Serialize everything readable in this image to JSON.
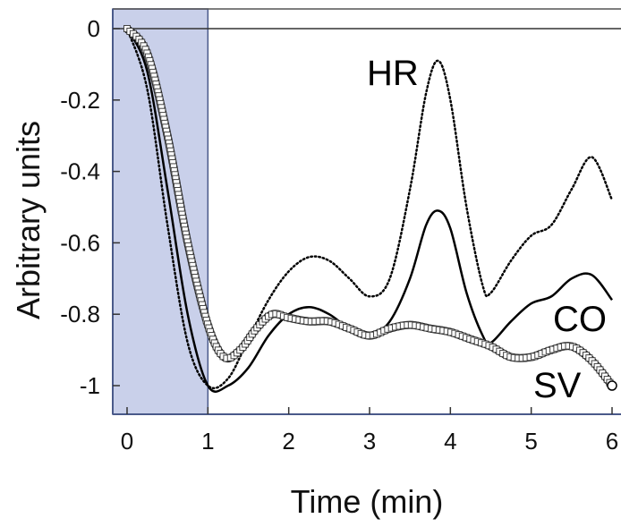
{
  "chart_data": {
    "type": "line",
    "title": "",
    "xlabel": "Time (min)",
    "ylabel": "Arbitrary units",
    "xlim": [
      0,
      6
    ],
    "ylim": [
      -1.05,
      0
    ],
    "xticks": [
      "0",
      "1",
      "2",
      "3",
      "4",
      "5",
      "6"
    ],
    "yticks": [
      "0",
      "-0.2",
      "-0.4",
      "-0.6",
      "-0.8",
      "-1"
    ],
    "reference_line_y": 0,
    "shaded_interval_x": [
      0,
      1
    ],
    "grid": false,
    "legend": "none",
    "colors": {
      "line": "#000000",
      "shade": "#c9d0ea",
      "frame": "#4a5a8a",
      "marker_stroke": "#444444"
    },
    "series": [
      {
        "name": "HR",
        "style": "dotted",
        "x": [
          0,
          0.25,
          0.5,
          0.75,
          1.0,
          1.25,
          1.5,
          1.75,
          2.0,
          2.25,
          2.5,
          2.75,
          3.0,
          3.25,
          3.5,
          3.7,
          3.85,
          4.0,
          4.2,
          4.4,
          4.5,
          4.75,
          5.0,
          5.25,
          5.5,
          5.75,
          6.0
        ],
        "y": [
          0,
          -0.17,
          -0.55,
          -0.88,
          -1.0,
          -0.98,
          -0.87,
          -0.76,
          -0.68,
          -0.64,
          -0.65,
          -0.7,
          -0.75,
          -0.7,
          -0.45,
          -0.18,
          -0.09,
          -0.2,
          -0.5,
          -0.72,
          -0.74,
          -0.65,
          -0.58,
          -0.55,
          -0.45,
          -0.36,
          -0.48
        ]
      },
      {
        "name": "CO",
        "style": "solid",
        "x": [
          0,
          0.25,
          0.5,
          0.75,
          1.0,
          1.25,
          1.5,
          1.75,
          2.0,
          2.25,
          2.5,
          2.75,
          3.0,
          3.25,
          3.5,
          3.7,
          3.85,
          4.0,
          4.2,
          4.4,
          4.5,
          4.75,
          5.0,
          5.25,
          5.5,
          5.75,
          6.0
        ],
        "y": [
          0,
          -0.12,
          -0.45,
          -0.8,
          -1.0,
          -1.0,
          -0.95,
          -0.86,
          -0.8,
          -0.78,
          -0.8,
          -0.84,
          -0.86,
          -0.82,
          -0.7,
          -0.55,
          -0.51,
          -0.56,
          -0.74,
          -0.86,
          -0.88,
          -0.82,
          -0.77,
          -0.75,
          -0.7,
          -0.69,
          -0.76
        ]
      },
      {
        "name": "SV",
        "style": "thick-markers",
        "x": [
          0,
          0.25,
          0.5,
          0.75,
          1.0,
          1.2,
          1.4,
          1.6,
          1.8,
          2.0,
          2.25,
          2.5,
          2.75,
          3.0,
          3.25,
          3.5,
          3.75,
          4.0,
          4.25,
          4.5,
          4.75,
          5.0,
          5.25,
          5.5,
          5.75,
          6.0
        ],
        "y": [
          0,
          -0.07,
          -0.3,
          -0.6,
          -0.83,
          -0.92,
          -0.9,
          -0.84,
          -0.8,
          -0.81,
          -0.82,
          -0.82,
          -0.84,
          -0.86,
          -0.84,
          -0.83,
          -0.84,
          -0.85,
          -0.87,
          -0.89,
          -0.92,
          -0.92,
          -0.9,
          -0.89,
          -0.93,
          -1.0
        ]
      }
    ]
  }
}
